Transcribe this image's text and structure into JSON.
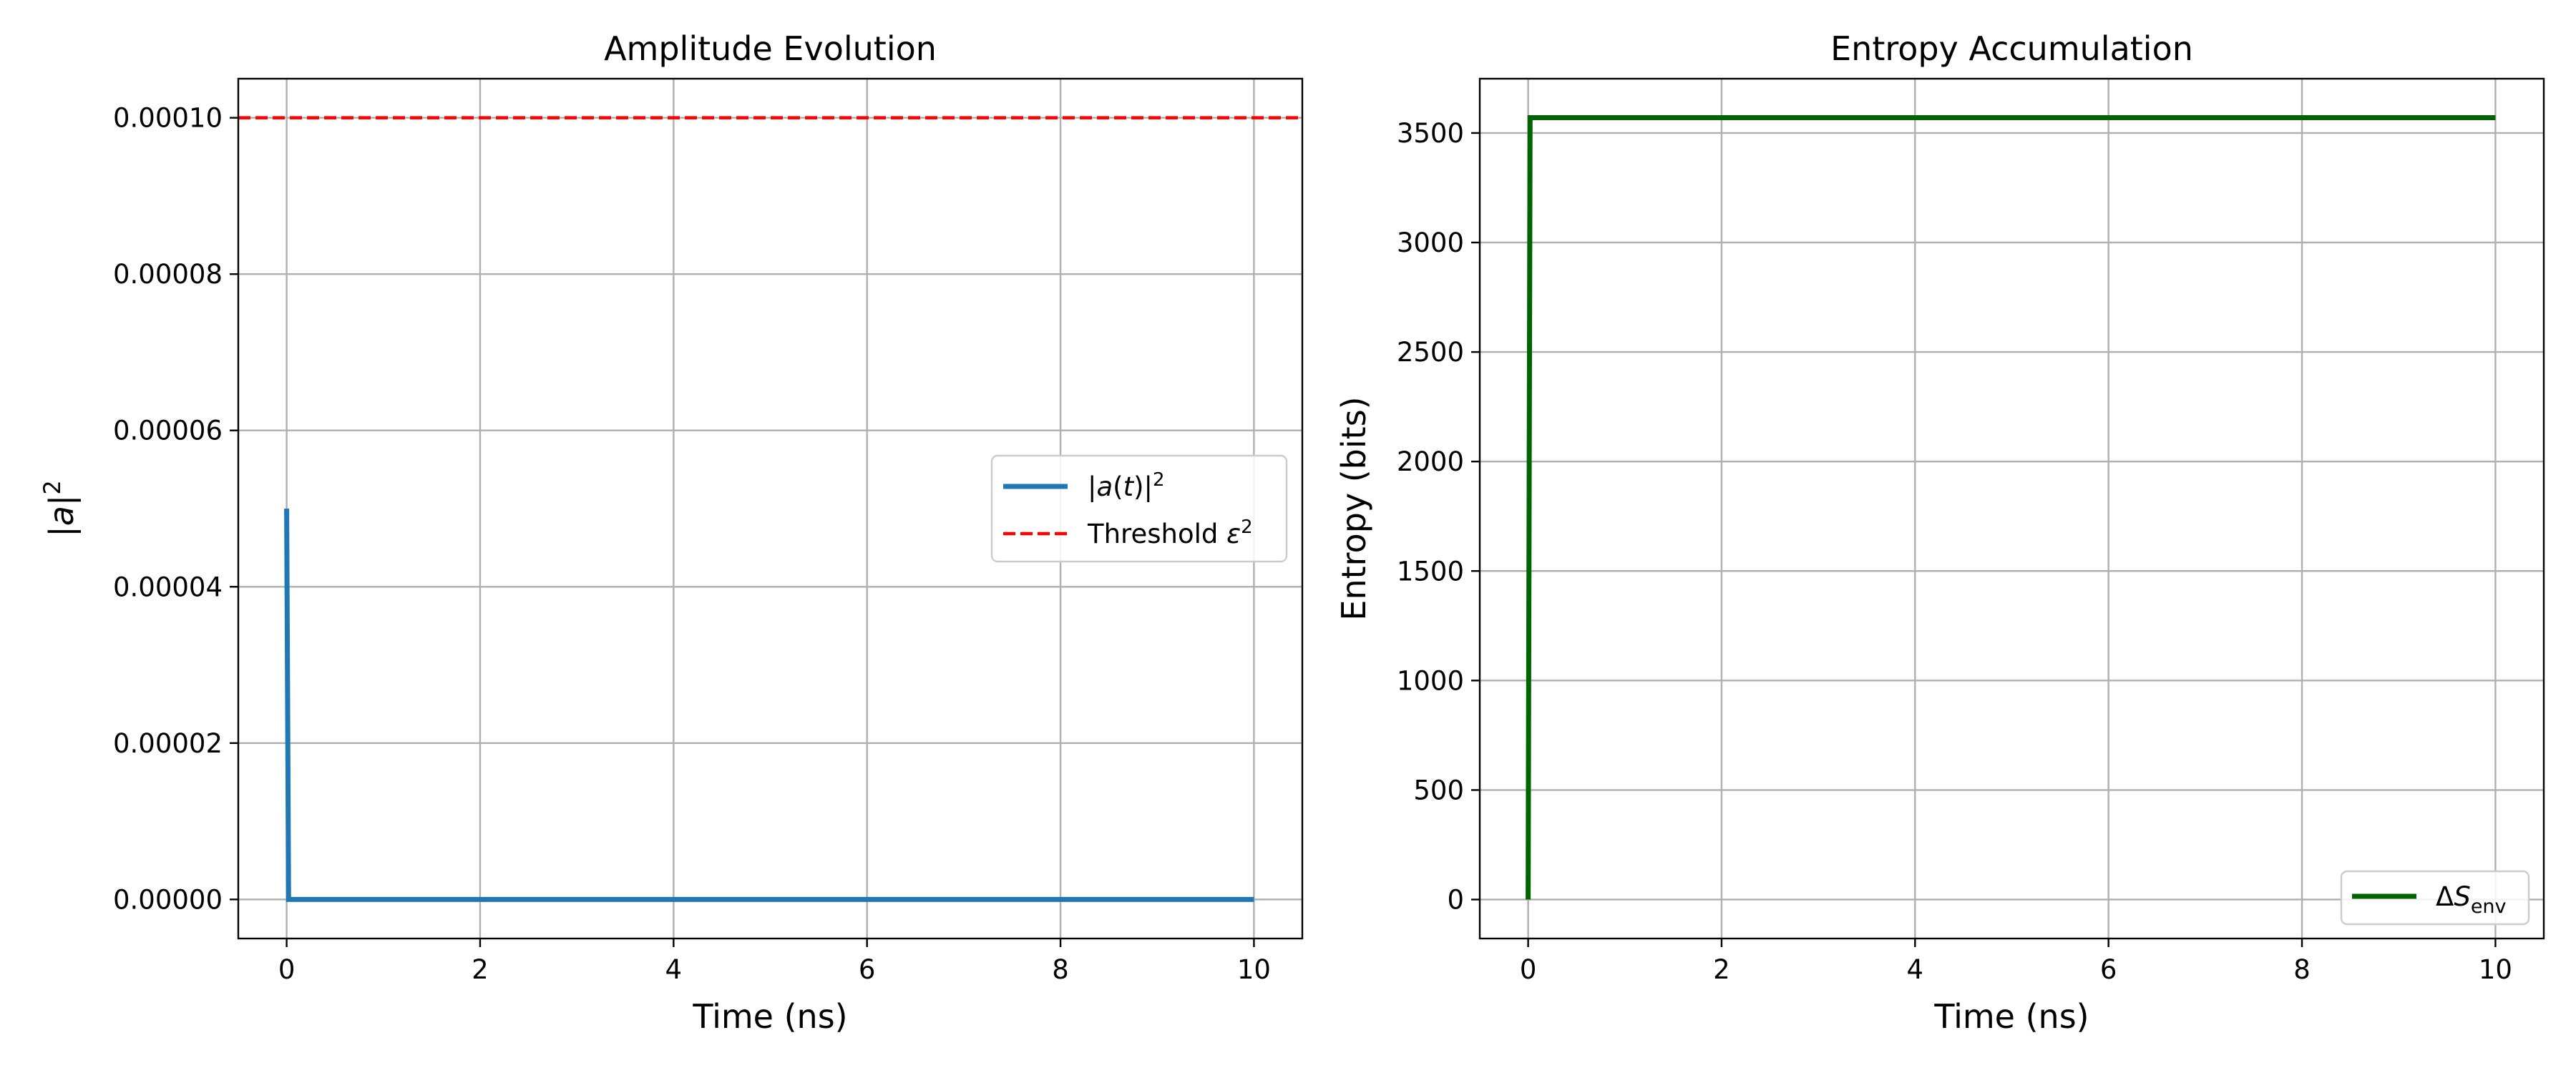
{
  "chart_data": [
    {
      "type": "line",
      "title": "Amplitude Evolution",
      "xlabel": "Time (ns)",
      "ylabel": "|a|²",
      "xlim": [
        -0.5,
        10.5
      ],
      "ylim": [
        -5e-06,
        0.000105
      ],
      "xticks": [
        0,
        2,
        4,
        6,
        8,
        10
      ],
      "xtick_labels": [
        "0",
        "2",
        "4",
        "6",
        "8",
        "10"
      ],
      "yticks": [
        0,
        2e-05,
        4e-05,
        6e-05,
        8e-05,
        0.0001
      ],
      "ytick_labels": [
        "0.00000",
        "0.00002",
        "0.00004",
        "0.00006",
        "0.00008",
        "0.00010"
      ],
      "grid": true,
      "legend_position": "center-right",
      "series": [
        {
          "name": "|a(t)|²",
          "color": "#1f77b4",
          "style": "solid",
          "x": [
            0,
            0.02,
            10
          ],
          "y": [
            5e-05,
            0,
            0
          ]
        },
        {
          "name": "Threshold ε²",
          "color": "#ff0000",
          "style": "dashed",
          "hline": 0.0001
        }
      ]
    },
    {
      "type": "line",
      "title": "Entropy Accumulation",
      "xlabel": "Time (ns)",
      "ylabel": "Entropy (bits)",
      "xlim": [
        -0.5,
        10.5
      ],
      "ylim": [
        -178,
        3748
      ],
      "xticks": [
        0,
        2,
        4,
        6,
        8,
        10
      ],
      "xtick_labels": [
        "0",
        "2",
        "4",
        "6",
        "8",
        "10"
      ],
      "yticks": [
        0,
        500,
        1000,
        1500,
        2000,
        2500,
        3000,
        3500
      ],
      "ytick_labels": [
        "0",
        "500",
        "1000",
        "1500",
        "2000",
        "2500",
        "3000",
        "3500"
      ],
      "grid": true,
      "legend_position": "lower-right",
      "series": [
        {
          "name": "ΔS_env",
          "color": "#006400",
          "style": "solid",
          "x": [
            0,
            0.02,
            10
          ],
          "y": [
            0,
            3570,
            3570
          ]
        }
      ]
    }
  ]
}
